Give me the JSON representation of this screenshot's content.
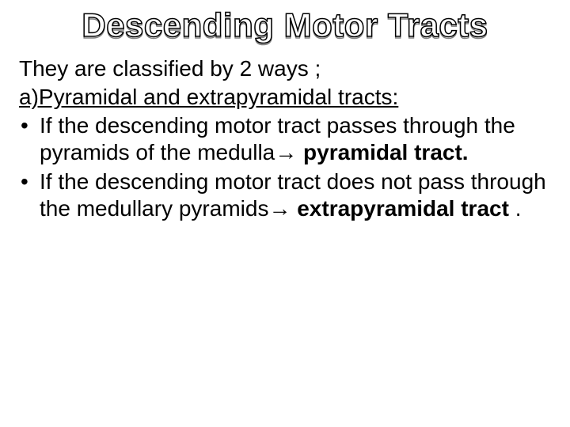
{
  "slide": {
    "title": "Descending Motor Tracts",
    "title_fontsize": 42,
    "body_fontsize": 28,
    "colors": {
      "background": "#ffffff",
      "text": "#000000",
      "title_fill": "#ffffff",
      "title_outline": "#000000",
      "title_shadow": "#808080"
    },
    "intro": "They are classified by 2 ways ;",
    "subheading": "a)Pyramidal and extrapyramidal tracts:",
    "bullets": [
      {
        "pre": "If the descending motor tract passes through the pyramids of the medulla→ ",
        "bold": "pyramidal tract."
      },
      {
        "pre": "If the descending motor tract does not pass through the medullary pyramids→ ",
        "bold": "extrapyramidal tract",
        "post": " ."
      }
    ],
    "bullet_char": "•"
  }
}
